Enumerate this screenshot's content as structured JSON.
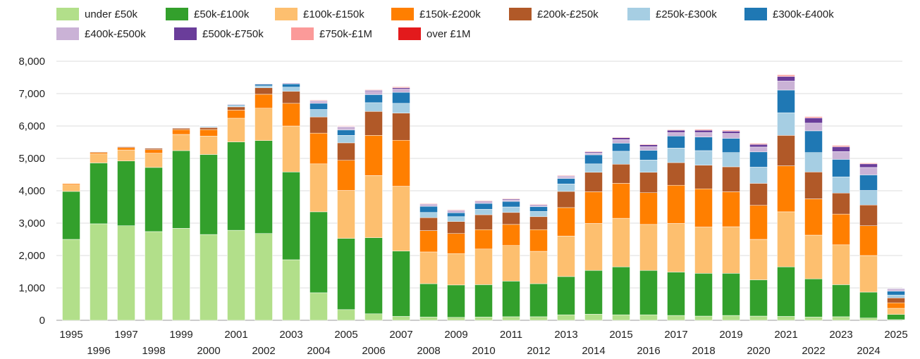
{
  "chart_data": {
    "type": "bar",
    "stacked": true,
    "title": "",
    "xlabel": "",
    "ylabel": "",
    "ylim": [
      0,
      8000
    ],
    "yticks": [
      0,
      1000,
      2000,
      3000,
      4000,
      5000,
      6000,
      7000,
      8000
    ],
    "ytick_labels": [
      "0",
      "1,000",
      "2,000",
      "3,000",
      "4,000",
      "5,000",
      "6,000",
      "7,000",
      "8,000"
    ],
    "grid": true,
    "legend_position": "top",
    "categories": [
      "1995",
      "1996",
      "1997",
      "1998",
      "1999",
      "2000",
      "2001",
      "2002",
      "2003",
      "2004",
      "2005",
      "2006",
      "2007",
      "2008",
      "2009",
      "2010",
      "2011",
      "2012",
      "2013",
      "2014",
      "2015",
      "2016",
      "2017",
      "2018",
      "2019",
      "2020",
      "2021",
      "2022",
      "2023",
      "2024",
      "2025"
    ],
    "series": [
      {
        "name": "under £50k",
        "color": "#b2df8a",
        "values": [
          2500,
          2980,
          2920,
          2740,
          2840,
          2650,
          2780,
          2680,
          1870,
          850,
          330,
          200,
          120,
          100,
          90,
          100,
          110,
          110,
          170,
          190,
          170,
          170,
          150,
          130,
          150,
          130,
          120,
          100,
          110,
          70,
          20
        ]
      },
      {
        "name": "£50k-£100k",
        "color": "#33a02c",
        "values": [
          1480,
          1880,
          2000,
          1980,
          2400,
          2470,
          2730,
          2870,
          2710,
          2500,
          2200,
          2350,
          2020,
          1030,
          1000,
          1000,
          1100,
          1020,
          1180,
          1350,
          1480,
          1370,
          1340,
          1320,
          1300,
          1120,
          1530,
          1180,
          990,
          800,
          160
        ]
      },
      {
        "name": "£100k-£150k",
        "color": "#fdbf6f",
        "values": [
          200,
          280,
          340,
          440,
          500,
          570,
          730,
          1000,
          1420,
          1480,
          1480,
          1920,
          2000,
          980,
          970,
          1100,
          1100,
          1000,
          1250,
          1450,
          1500,
          1420,
          1500,
          1430,
          1440,
          1250,
          1700,
          1350,
          1230,
          1130,
          190
        ]
      },
      {
        "name": "£150k-£200k",
        "color": "#ff7f00",
        "values": [
          40,
          40,
          70,
          110,
          150,
          200,
          250,
          430,
          700,
          950,
          930,
          1240,
          1420,
          660,
          620,
          600,
          650,
          670,
          880,
          980,
          1080,
          980,
          1180,
          1180,
          1080,
          1050,
          1420,
          1120,
          950,
          920,
          170
        ]
      },
      {
        "name": "£200k-£250k",
        "color": "#b15928",
        "values": [
          10,
          20,
          30,
          40,
          40,
          60,
          100,
          200,
          370,
          500,
          540,
          740,
          840,
          400,
          370,
          460,
          370,
          400,
          500,
          600,
          590,
          630,
          700,
          730,
          770,
          680,
          940,
          830,
          650,
          640,
          150
        ]
      },
      {
        "name": "£250k-£300k",
        "color": "#a6cee3",
        "values": [
          0,
          5,
          10,
          10,
          10,
          20,
          30,
          60,
          130,
          230,
          230,
          270,
          300,
          160,
          150,
          170,
          170,
          160,
          230,
          260,
          400,
          380,
          450,
          450,
          440,
          500,
          700,
          600,
          500,
          450,
          90
        ]
      },
      {
        "name": "£300k-£400k",
        "color": "#1f78b4",
        "values": [
          0,
          5,
          10,
          10,
          10,
          20,
          30,
          50,
          100,
          190,
          170,
          250,
          340,
          190,
          120,
          180,
          170,
          150,
          170,
          280,
          250,
          300,
          370,
          420,
          440,
          470,
          700,
          670,
          540,
          480,
          120
        ]
      },
      {
        "name": "£400k-£500k",
        "color": "#cab2d6",
        "values": [
          0,
          0,
          0,
          0,
          0,
          10,
          20,
          20,
          30,
          80,
          100,
          100,
          100,
          50,
          60,
          50,
          40,
          40,
          50,
          60,
          110,
          110,
          110,
          140,
          150,
          150,
          280,
          240,
          240,
          230,
          60
        ]
      },
      {
        "name": "£500k-£750k",
        "color": "#6a3d9a",
        "values": [
          0,
          0,
          0,
          0,
          0,
          0,
          0,
          10,
          10,
          10,
          10,
          30,
          40,
          20,
          20,
          20,
          30,
          20,
          20,
          30,
          60,
          60,
          70,
          70,
          70,
          80,
          140,
          160,
          150,
          110,
          20
        ]
      },
      {
        "name": "£750k-£1M",
        "color": "#fb9a99",
        "values": [
          10,
          10,
          10,
          10,
          10,
          10,
          10,
          10,
          10,
          20,
          20,
          20,
          30,
          20,
          20,
          20,
          20,
          20,
          20,
          20,
          20,
          20,
          20,
          30,
          30,
          30,
          50,
          40,
          40,
          30,
          10
        ]
      },
      {
        "name": "over £1M",
        "color": "#e31a1c",
        "values": [
          0,
          0,
          0,
          0,
          0,
          0,
          0,
          0,
          0,
          0,
          0,
          0,
          10,
          0,
          0,
          0,
          0,
          10,
          0,
          0,
          0,
          0,
          0,
          0,
          0,
          0,
          10,
          10,
          10,
          10,
          0
        ]
      }
    ]
  }
}
